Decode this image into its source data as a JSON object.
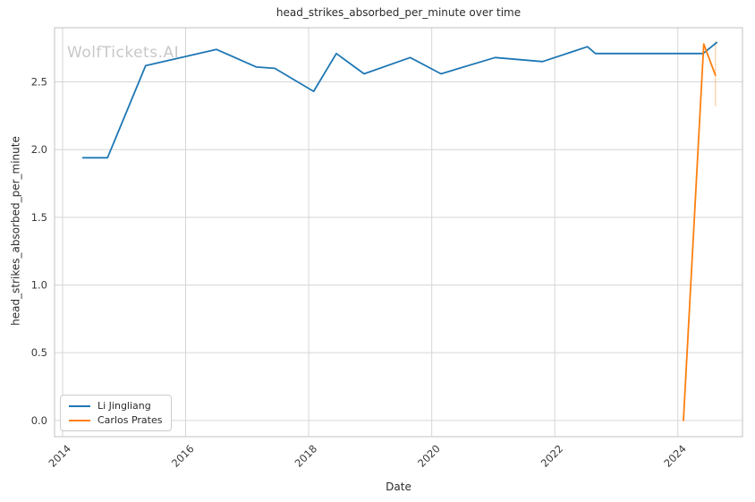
{
  "figure": {
    "title": "head_strikes_absorbed_per_minute over time",
    "watermark": "WolfTickets.AI"
  },
  "axes": {
    "xlabel": "Date",
    "ylabel": "head_strikes_absorbed_per_minute"
  },
  "legend": {
    "items": [
      {
        "label": "Li Jingliang",
        "color": "#1f77b4"
      },
      {
        "label": "Carlos Prates",
        "color": "#ff7f0e"
      }
    ]
  },
  "colors": {
    "background": "#ffffff",
    "grid": "#d6d6d6",
    "spine": "#cccccc",
    "text": "#2b2b2b",
    "tick_text": "#3a3a3a",
    "watermark": "#c8c8c8",
    "series_blue": "#1f77b4",
    "series_orange": "#ff7f0e"
  },
  "chart_data": {
    "type": "line",
    "title": "head_strikes_absorbed_per_minute over time",
    "xlabel": "Date",
    "ylabel": "head_strikes_absorbed_per_minute",
    "xlim": [
      2013.87,
      2025.05
    ],
    "ylim": [
      -0.12,
      2.9
    ],
    "x_ticks": [
      2014,
      2016,
      2018,
      2020,
      2022,
      2024
    ],
    "y_ticks": [
      0.0,
      0.5,
      1.0,
      1.5,
      2.0,
      2.5
    ],
    "grid": true,
    "legend_position": "lower-left",
    "series": [
      {
        "name": "Li Jingliang",
        "color": "#1f77b4",
        "x": [
          2014.33,
          2014.73,
          2015.35,
          2016.5,
          2017.15,
          2017.45,
          2018.08,
          2018.45,
          2018.9,
          2019.65,
          2020.15,
          2021.03,
          2021.8,
          2022.53,
          2022.66,
          2024.41,
          2024.63
        ],
        "y": [
          1.94,
          1.94,
          2.62,
          2.74,
          2.61,
          2.6,
          2.43,
          2.71,
          2.56,
          2.68,
          2.56,
          2.68,
          2.65,
          2.76,
          2.71,
          2.71,
          2.79
        ]
      },
      {
        "name": "Carlos Prates",
        "color": "#ff7f0e",
        "x": [
          2024.09,
          2024.42,
          2024.61
        ],
        "y": [
          0.0,
          2.78,
          2.55
        ]
      }
    ],
    "annotations": [
      {
        "type": "vertical-segment",
        "x": 2024.61,
        "y_from": 2.32,
        "y_to": 2.8,
        "color": "#ff7f0e",
        "opacity": 0.33
      }
    ]
  }
}
